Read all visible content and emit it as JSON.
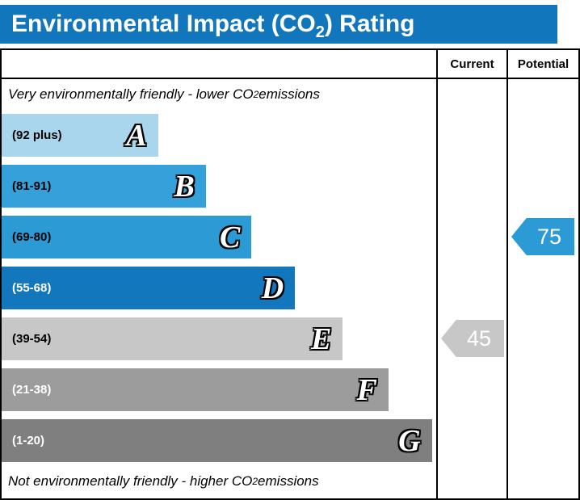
{
  "title": {
    "prefix": "Environmental Impact (CO",
    "sub": "2",
    "suffix": ") Rating"
  },
  "columns": {
    "current": "Current",
    "potential": "Potential"
  },
  "notes": {
    "top": {
      "prefix": "Very environmentally friendly - lower CO",
      "sub": "2",
      "suffix": " emissions"
    },
    "bottom": {
      "prefix": "Not environmentally friendly - higher CO",
      "sub": "2",
      "suffix": " emissions"
    }
  },
  "chart_data": {
    "type": "bar",
    "title": "Environmental Impact (CO2) Rating",
    "bands": [
      {
        "letter": "A",
        "range": "(92 plus)",
        "color": "#a9d6ec",
        "label_color": "#000000",
        "width_pct": 36
      },
      {
        "letter": "B",
        "range": "(81-91)",
        "color": "#35a1da",
        "label_color": "#000000",
        "width_pct": 47
      },
      {
        "letter": "C",
        "range": "(69-80)",
        "color": "#2b9ad5",
        "label_color": "#000000",
        "width_pct": 57.5
      },
      {
        "letter": "D",
        "range": "(55-68)",
        "color": "#1377bd",
        "label_color": "#ffffff",
        "width_pct": 67.5
      },
      {
        "letter": "E",
        "range": "(39-54)",
        "color": "#c7c7c7",
        "label_color": "#000000",
        "width_pct": 78.5
      },
      {
        "letter": "F",
        "range": "(21-38)",
        "color": "#9c9c9c",
        "label_color": "#ffffff",
        "width_pct": 89
      },
      {
        "letter": "G",
        "range": "(1-20)",
        "color": "#7f7f7f",
        "label_color": "#ffffff",
        "width_pct": 99
      }
    ],
    "current": {
      "value": "45",
      "band": "E",
      "color": "#c7c7c7"
    },
    "potential": {
      "value": "75",
      "band": "C",
      "color": "#2b9ad5"
    }
  }
}
